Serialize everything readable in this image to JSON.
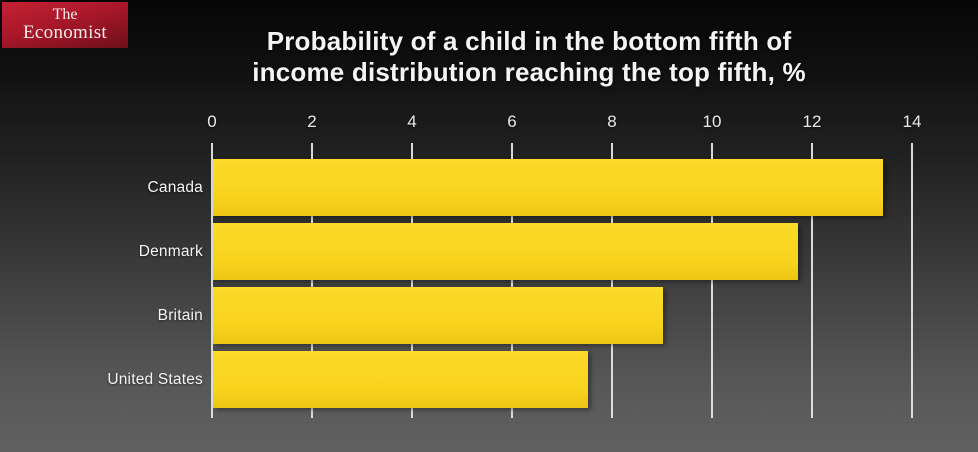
{
  "logo": {
    "line1": "The",
    "line2": "Economist"
  },
  "title": {
    "line1": "Probability of a child in the bottom fifth of",
    "line2": "income distribution reaching the top fifth, %"
  },
  "chart_data": {
    "type": "bar",
    "orientation": "horizontal",
    "title": "Probability of a child in the bottom fifth of income distribution reaching the top fifth, %",
    "categories": [
      "Canada",
      "Denmark",
      "Britain",
      "United States"
    ],
    "values": [
      13.4,
      11.7,
      9.0,
      7.5
    ],
    "xlabel": "",
    "ylabel": "",
    "xlim": [
      0,
      14
    ],
    "xticks": [
      0,
      2,
      4,
      6,
      8,
      10,
      12,
      14
    ],
    "grid": true,
    "axis_position": "top",
    "bar_color": "#F8D51E",
    "gridline_color": "#E8E8E8",
    "text_color": "#F4F4F4",
    "background_top": "#060606",
    "background_bottom": "#616161",
    "logo_red": "#A8182A"
  }
}
